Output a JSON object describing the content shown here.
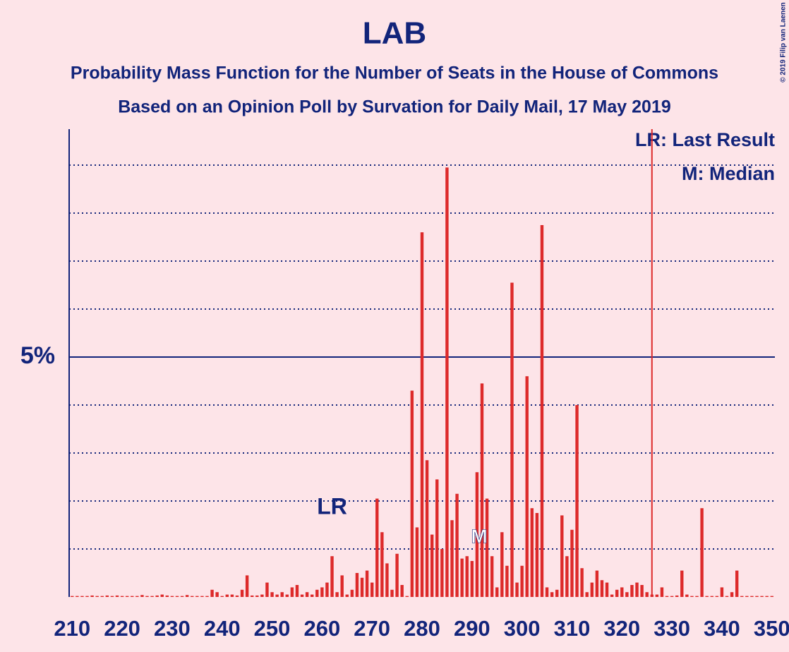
{
  "chart_data": {
    "type": "bar",
    "title": "LAB",
    "subtitle": "Probability Mass Function for the Number of Seats in the House of Commons",
    "subtitle2": "Based on an Opinion Poll by Survation for Daily Mail, 17 May 2019",
    "credit": "© 2019 Filip van Laenen",
    "color": "#dd2a2a",
    "x": [
      210,
      211,
      212,
      213,
      214,
      215,
      216,
      217,
      218,
      219,
      220,
      221,
      222,
      223,
      224,
      225,
      226,
      227,
      228,
      229,
      230,
      231,
      232,
      233,
      234,
      235,
      236,
      237,
      238,
      239,
      240,
      241,
      242,
      243,
      244,
      245,
      246,
      247,
      248,
      249,
      250,
      251,
      252,
      253,
      254,
      255,
      256,
      257,
      258,
      259,
      260,
      261,
      262,
      263,
      264,
      265,
      266,
      267,
      268,
      269,
      270,
      271,
      272,
      273,
      274,
      275,
      276,
      277,
      278,
      279,
      280,
      281,
      282,
      283,
      284,
      285,
      286,
      287,
      288,
      289,
      290,
      291,
      292,
      293,
      294,
      295,
      296,
      297,
      298,
      299,
      300,
      301,
      302,
      303,
      304,
      305,
      306,
      307,
      308,
      309,
      310,
      311,
      312,
      313,
      314,
      315,
      316,
      317,
      318,
      319,
      320,
      321,
      322,
      323,
      324,
      325,
      326,
      327,
      328,
      329,
      330,
      331,
      332,
      333,
      334,
      335,
      336,
      337,
      338,
      339,
      340,
      341,
      342,
      343,
      344,
      345,
      346,
      347,
      348,
      349,
      350
    ],
    "values": [
      0.02,
      0.02,
      0.02,
      0.02,
      0.03,
      0.02,
      0.02,
      0.03,
      0.02,
      0.03,
      0.02,
      0.02,
      0.02,
      0.02,
      0.04,
      0.02,
      0.02,
      0.03,
      0.05,
      0.03,
      0.02,
      0.02,
      0.02,
      0.04,
      0.02,
      0.02,
      0.02,
      0.02,
      0.15,
      0.1,
      0.02,
      0.05,
      0.05,
      0.03,
      0.15,
      0.45,
      0.03,
      0.03,
      0.05,
      0.3,
      0.1,
      0.05,
      0.1,
      0.05,
      0.2,
      0.25,
      0.05,
      0.1,
      0.05,
      0.15,
      0.2,
      0.3,
      0.85,
      0.1,
      0.45,
      0.05,
      0.15,
      0.5,
      0.4,
      0.55,
      0.3,
      2.05,
      1.35,
      0.7,
      0.15,
      0.9,
      0.25,
      0.02,
      4.3,
      1.45,
      7.6,
      2.85,
      1.3,
      2.45,
      1.0,
      8.95,
      1.6,
      2.15,
      0.8,
      0.85,
      0.75,
      2.6,
      4.45,
      2.05,
      0.85,
      0.2,
      1.35,
      0.65,
      6.55,
      0.3,
      0.65,
      4.6,
      1.85,
      1.75,
      7.75,
      0.2,
      0.1,
      0.15,
      1.7,
      0.85,
      1.4,
      4.0,
      0.6,
      0.1,
      0.3,
      0.55,
      0.35,
      0.3,
      0.05,
      0.15,
      0.2,
      0.1,
      0.25,
      0.3,
      0.25,
      0.1,
      0.05,
      0.05,
      0.2,
      0.02,
      0.02,
      0.03,
      0.55,
      0.05,
      0.02,
      0.02,
      1.85,
      0.02,
      0.02,
      0.02,
      0.2,
      0.02,
      0.1,
      0.55,
      0.02,
      0.02,
      0.02,
      0.02,
      0.02,
      0.02,
      0.02
    ],
    "xlim": [
      209.4,
      350.6
    ],
    "xticks": [
      210,
      220,
      230,
      240,
      250,
      260,
      270,
      280,
      290,
      300,
      310,
      320,
      330,
      340,
      350
    ],
    "ylim": [
      0,
      9.75
    ],
    "yticks": [
      {
        "value": 5,
        "label": "5%"
      }
    ],
    "grid_lines": [
      1,
      2,
      3,
      4,
      6,
      7,
      8,
      9
    ],
    "last_result": 262,
    "last_result_label": "LR",
    "median": 292,
    "median_label": "M",
    "majority_line": 326,
    "legend": [
      "LR: Last Result",
      "M: Median"
    ]
  }
}
